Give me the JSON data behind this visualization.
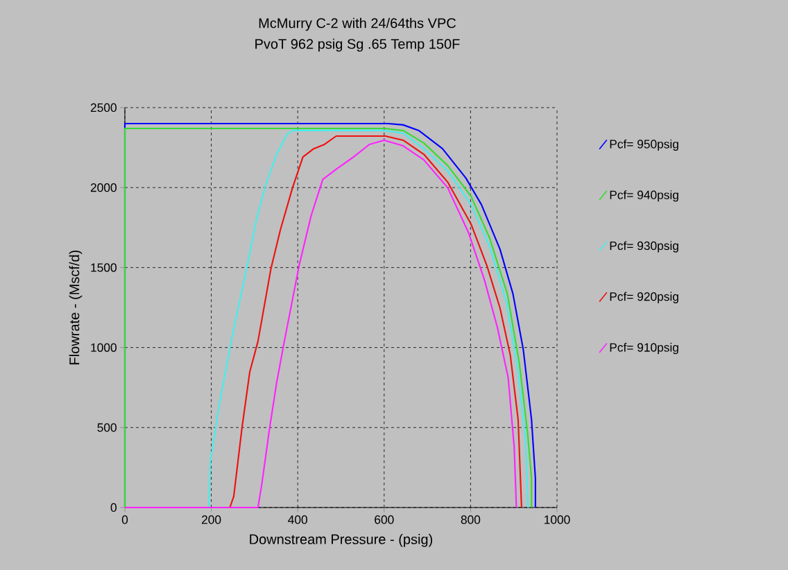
{
  "chart_data": {
    "type": "line",
    "title": "McMurry C-2 with 24/64ths VPC",
    "subtitle": "PvoT  962 psig Sg  .65 Temp  150F",
    "xlabel": "Downstream Pressure - (psig)",
    "ylabel": "Flowrate - (Mscf/d)",
    "xlim": [
      0,
      1000
    ],
    "ylim": [
      0,
      2500
    ],
    "xticks": [
      0,
      200,
      400,
      600,
      800,
      1000
    ],
    "yticks": [
      0,
      500,
      1000,
      1500,
      2000,
      2500
    ],
    "grid": true,
    "legend": "right",
    "line_style": "solid",
    "series": [
      {
        "name": "Pcf= 950psig",
        "color": "#0000ff",
        "x": [
          0,
          0,
          609,
          644,
          680,
          735,
          789,
          825,
          868,
          898,
          922,
          941,
          950,
          950
        ],
        "values": [
          0,
          2400,
          2400,
          2392,
          2357,
          2243,
          2060,
          1894,
          1615,
          1336,
          986,
          550,
          183,
          0
        ]
      },
      {
        "name": "Pcf= 940psig",
        "color": "#33dd33",
        "x": [
          0,
          0,
          600,
          644,
          692,
          747,
          801,
          844,
          885,
          913,
          932,
          941,
          941
        ],
        "values": [
          0,
          2370,
          2370,
          2357,
          2278,
          2138,
          1946,
          1685,
          1336,
          899,
          463,
          183,
          0
        ]
      },
      {
        "name": "Pcf= 930psig",
        "color": "#44eeee",
        "x": [
          0,
          194,
          198,
          218,
          246,
          283,
          305,
          326,
          351,
          375,
          388,
          600,
          644,
          692,
          747,
          801,
          844,
          883,
          910,
          927,
          933
        ],
        "values": [
          0,
          0,
          288,
          637,
          1039,
          1510,
          1807,
          2016,
          2208,
          2331,
          2357,
          2357,
          2340,
          2243,
          2104,
          1894,
          1633,
          1283,
          847,
          428,
          0
        ]
      },
      {
        "name": "Pcf= 920psig",
        "color": "#ee1111",
        "x": [
          0,
          243,
          252,
          271,
          289,
          308,
          338,
          360,
          388,
          412,
          437,
          462,
          489,
          603,
          644,
          692,
          747,
          801,
          838,
          868,
          892,
          910,
          918
        ],
        "values": [
          0,
          0,
          70,
          498,
          847,
          1039,
          1493,
          1737,
          1999,
          2191,
          2243,
          2270,
          2322,
          2322,
          2296,
          2208,
          2034,
          1772,
          1510,
          1248,
          951,
          550,
          0
        ]
      },
      {
        "name": "Pcf= 910psig",
        "color": "#ff22ff",
        "x": [
          0,
          308,
          317,
          335,
          351,
          369,
          403,
          431,
          458,
          492,
          529,
          566,
          600,
          644,
          692,
          747,
          795,
          832,
          862,
          887,
          901,
          906
        ],
        "values": [
          0,
          0,
          148,
          498,
          777,
          1039,
          1510,
          1824,
          2051,
          2121,
          2191,
          2270,
          2296,
          2261,
          2173,
          1999,
          1720,
          1423,
          1126,
          812,
          375,
          0
        ]
      }
    ]
  }
}
